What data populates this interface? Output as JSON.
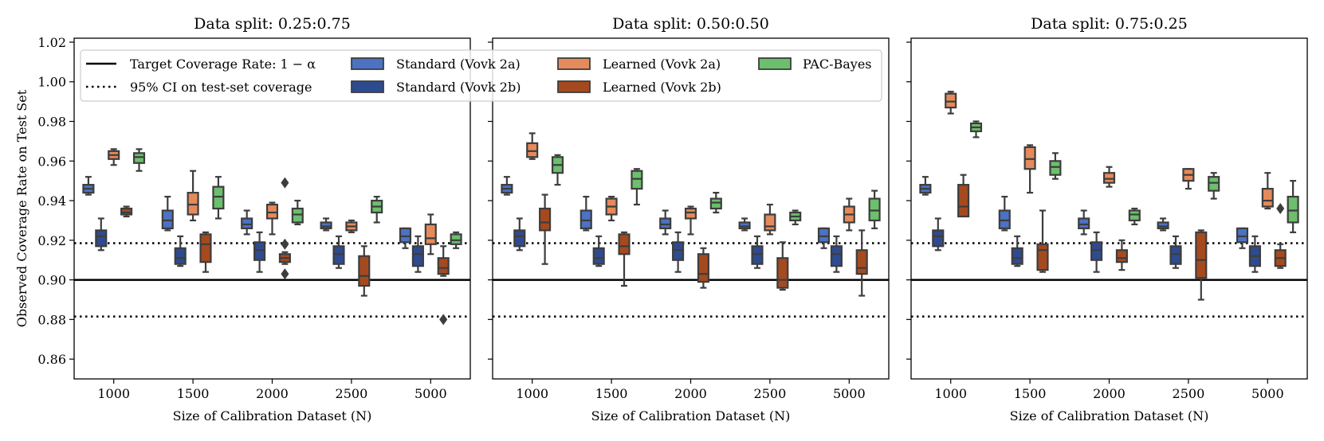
{
  "figure": {
    "ylabel": "Observed Coverage Rate on Test Set",
    "xlabel": "Size of Calibration Dataset (N)"
  },
  "legend": {
    "lines": [
      {
        "label": "Target Coverage Rate: 1 − α",
        "style": "solid"
      },
      {
        "label": "95% CI on test-set coverage",
        "style": "dotted"
      }
    ],
    "patches": [
      {
        "label": "Standard (Vovk 2a)",
        "color": "#4c72c4"
      },
      {
        "label": "Standard (Vovk 2b)",
        "color": "#2f4b8f"
      },
      {
        "label": "Learned (Vovk 2a)",
        "color": "#e58a5b"
      },
      {
        "label": "Learned (Vovk 2b)",
        "color": "#a54a1f"
      },
      {
        "label": "PAC-Bayes",
        "color": "#6cbf6c"
      }
    ]
  },
  "chart_data": {
    "type": "box",
    "ylim": [
      0.85,
      1.022
    ],
    "yticks": [
      "0.86",
      "0.88",
      "0.90",
      "0.92",
      "0.94",
      "0.96",
      "0.98",
      "1.00",
      "1.02"
    ],
    "reference_lines": {
      "target": 0.9,
      "ci_upper": 0.9185,
      "ci_lower": 0.8815
    },
    "categories": [
      "1000",
      "1500",
      "2000",
      "2500",
      "5000"
    ],
    "series_names": [
      "Standard (Vovk 2a)",
      "Standard (Vovk 2b)",
      "Learned (Vovk 2a)",
      "Learned (Vovk 2b)",
      "PAC-Bayes"
    ],
    "series_colors": [
      "#4c72c4",
      "#2f4b8f",
      "#e58a5b",
      "#a54a1f",
      "#6cbf6c"
    ],
    "panels": [
      {
        "title": "Data split: 0.25:0.75",
        "boxes": [
          [
            [
              0.943,
              0.944,
              0.946,
              0.948,
              0.952
            ],
            [
              0.915,
              0.917,
              0.922,
              0.925,
              0.931
            ],
            [
              0.958,
              0.961,
              0.963,
              0.965,
              0.966
            ],
            [
              0.932,
              0.933,
              0.934,
              0.936,
              0.937
            ],
            [
              0.955,
              0.959,
              0.962,
              0.964,
              0.966
            ]
          ],
          [
            [
              0.925,
              0.926,
              0.93,
              0.935,
              0.942
            ],
            [
              0.907,
              0.908,
              0.911,
              0.916,
              0.922
            ],
            [
              0.93,
              0.933,
              0.938,
              0.944,
              0.955
            ],
            [
              0.904,
              0.909,
              0.918,
              0.923,
              0.924
            ],
            [
              0.931,
              0.936,
              0.942,
              0.947,
              0.952
            ]
          ],
          [
            [
              0.923,
              0.926,
              0.928,
              0.931,
              0.935
            ],
            [
              0.904,
              0.91,
              0.915,
              0.919,
              0.924
            ],
            [
              0.923,
              0.931,
              0.934,
              0.938,
              0.939
            ],
            [
              0.908,
              0.909,
              0.911,
              0.913,
              0.914
            ],
            [
              0.928,
              0.929,
              0.933,
              0.936,
              0.94
            ]
          ],
          [
            [
              0.925,
              0.926,
              0.927,
              0.929,
              0.931
            ],
            [
              0.906,
              0.908,
              0.913,
              0.917,
              0.922
            ],
            [
              0.924,
              0.925,
              0.927,
              0.929,
              0.93
            ],
            [
              0.892,
              0.897,
              0.902,
              0.912,
              0.917
            ],
            [
              0.929,
              0.934,
              0.937,
              0.94,
              0.942
            ]
          ],
          [
            [
              0.916,
              0.919,
              0.922,
              0.926,
              0.926
            ],
            [
              0.904,
              0.907,
              0.913,
              0.917,
              0.922
            ],
            [
              0.913,
              0.918,
              0.921,
              0.928,
              0.933
            ],
            [
              0.902,
              0.903,
              0.906,
              0.911,
              0.917
            ],
            [
              0.916,
              0.918,
              0.92,
              0.923,
              0.924
            ]
          ]
        ],
        "outliers": [
          [
            2,
            3,
            0.949
          ],
          [
            2,
            3,
            0.918
          ],
          [
            2,
            3,
            0.903
          ],
          [
            4,
            3,
            0.88
          ]
        ]
      },
      {
        "title": "Data split: 0.50:0.50",
        "boxes": [
          [
            [
              0.943,
              0.944,
              0.946,
              0.948,
              0.952
            ],
            [
              0.915,
              0.917,
              0.922,
              0.925,
              0.931
            ],
            [
              0.961,
              0.962,
              0.965,
              0.969,
              0.974
            ],
            [
              0.908,
              0.925,
              0.929,
              0.936,
              0.943
            ],
            [
              0.948,
              0.954,
              0.958,
              0.962,
              0.963
            ]
          ],
          [
            [
              0.925,
              0.926,
              0.93,
              0.935,
              0.942
            ],
            [
              0.907,
              0.908,
              0.911,
              0.916,
              0.922
            ],
            [
              0.93,
              0.933,
              0.937,
              0.941,
              0.942
            ],
            [
              0.897,
              0.913,
              0.917,
              0.923,
              0.924
            ],
            [
              0.938,
              0.946,
              0.951,
              0.955,
              0.956
            ]
          ],
          [
            [
              0.923,
              0.926,
              0.928,
              0.931,
              0.935
            ],
            [
              0.904,
              0.91,
              0.915,
              0.919,
              0.924
            ],
            [
              0.923,
              0.931,
              0.934,
              0.936,
              0.937
            ],
            [
              0.896,
              0.899,
              0.903,
              0.913,
              0.916
            ],
            [
              0.934,
              0.936,
              0.939,
              0.941,
              0.944
            ]
          ],
          [
            [
              0.925,
              0.926,
              0.927,
              0.929,
              0.931
            ],
            [
              0.906,
              0.908,
              0.913,
              0.917,
              0.922
            ],
            [
              0.923,
              0.925,
              0.927,
              0.933,
              0.938
            ],
            [
              0.895,
              0.896,
              0.9,
              0.911,
              0.919
            ],
            [
              0.928,
              0.93,
              0.932,
              0.934,
              0.935
            ]
          ],
          [
            [
              0.916,
              0.919,
              0.922,
              0.926,
              0.926
            ],
            [
              0.904,
              0.907,
              0.913,
              0.917,
              0.922
            ],
            [
              0.925,
              0.929,
              0.933,
              0.937,
              0.941
            ],
            [
              0.892,
              0.903,
              0.906,
              0.915,
              0.925
            ],
            [
              0.926,
              0.93,
              0.935,
              0.941,
              0.945
            ]
          ]
        ],
        "outliers": []
      },
      {
        "title": "Data split: 0.75:0.25",
        "boxes": [
          [
            [
              0.943,
              0.944,
              0.946,
              0.948,
              0.952
            ],
            [
              0.915,
              0.917,
              0.922,
              0.925,
              0.931
            ],
            [
              0.984,
              0.987,
              0.99,
              0.994,
              0.995
            ],
            [
              0.932,
              0.932,
              0.937,
              0.948,
              0.953
            ],
            [
              0.972,
              0.975,
              0.977,
              0.979,
              0.98
            ]
          ],
          [
            [
              0.925,
              0.926,
              0.93,
              0.935,
              0.942
            ],
            [
              0.907,
              0.908,
              0.911,
              0.916,
              0.922
            ],
            [
              0.944,
              0.956,
              0.961,
              0.967,
              0.968
            ],
            [
              0.904,
              0.905,
              0.915,
              0.918,
              0.935
            ],
            [
              0.951,
              0.953,
              0.957,
              0.96,
              0.964
            ]
          ],
          [
            [
              0.923,
              0.926,
              0.928,
              0.931,
              0.935
            ],
            [
              0.904,
              0.91,
              0.915,
              0.919,
              0.924
            ],
            [
              0.947,
              0.949,
              0.951,
              0.954,
              0.957
            ],
            [
              0.905,
              0.909,
              0.911,
              0.915,
              0.92
            ],
            [
              0.928,
              0.93,
              0.933,
              0.935,
              0.936
            ]
          ],
          [
            [
              0.925,
              0.926,
              0.927,
              0.929,
              0.931
            ],
            [
              0.906,
              0.908,
              0.913,
              0.917,
              0.922
            ],
            [
              0.946,
              0.95,
              0.953,
              0.956,
              0.956
            ],
            [
              0.89,
              0.901,
              0.91,
              0.924,
              0.925
            ],
            [
              0.941,
              0.945,
              0.949,
              0.952,
              0.954
            ]
          ],
          [
            [
              0.916,
              0.919,
              0.922,
              0.926,
              0.926
            ],
            [
              0.904,
              0.907,
              0.912,
              0.917,
              0.922
            ],
            [
              0.936,
              0.937,
              0.94,
              0.946,
              0.954
            ],
            [
              0.906,
              0.907,
              0.911,
              0.915,
              0.918
            ],
            [
              0.924,
              0.929,
              0.935,
              0.942,
              0.95
            ]
          ]
        ],
        "outliers": [
          [
            4,
            3,
            0.936
          ]
        ]
      }
    ]
  }
}
